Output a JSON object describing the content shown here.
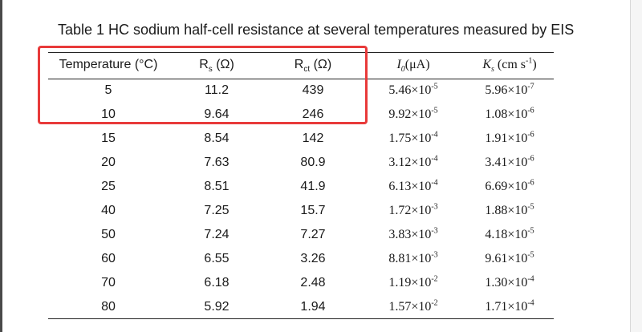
{
  "caption": "Table 1 HC sodium half-cell resistance at several temperatures measured by EIS",
  "header": {
    "temperature": "Temperature (°C)",
    "rs_main": "R",
    "rs_sub": "s",
    "rs_unit": " (Ω)",
    "rct_main": "R",
    "rct_sub": "ct",
    "rct_unit": " (Ω)",
    "i0_main": "I",
    "i0_sub": "0",
    "i0_unit": "(μA)",
    "ks_main": "K",
    "ks_sub": "s",
    "ks_unit": " (cm s",
    "ks_exp": "-1",
    "ks_close": ")"
  },
  "rows": [
    {
      "temp": "5",
      "rs": "11.2",
      "rct": "439",
      "i0": "5.46×10",
      "i0_exp": "-5",
      "ks": "5.96×10",
      "ks_exp": "-7"
    },
    {
      "temp": "10",
      "rs": "9.64",
      "rct": "246",
      "i0": "9.92×10",
      "i0_exp": "-5",
      "ks": "1.08×10",
      "ks_exp": "-6"
    },
    {
      "temp": "15",
      "rs": "8.54",
      "rct": "142",
      "i0": "1.75×10",
      "i0_exp": "-4",
      "ks": "1.91×10",
      "ks_exp": "-6"
    },
    {
      "temp": "20",
      "rs": "7.63",
      "rct": "80.9",
      "i0": "3.12×10",
      "i0_exp": "-4",
      "ks": "3.41×10",
      "ks_exp": "-6"
    },
    {
      "temp": "25",
      "rs": "8.51",
      "rct": "41.9",
      "i0": "6.13×10",
      "i0_exp": "-4",
      "ks": "6.69×10",
      "ks_exp": "-6"
    },
    {
      "temp": "40",
      "rs": "7.25",
      "rct": "15.7",
      "i0": "1.72×10",
      "i0_exp": "-3",
      "ks": "1.88×10",
      "ks_exp": "-5"
    },
    {
      "temp": "50",
      "rs": "7.24",
      "rct": "7.27",
      "i0": "3.83×10",
      "i0_exp": "-3",
      "ks": "4.18×10",
      "ks_exp": "-5"
    },
    {
      "temp": "60",
      "rs": "6.55",
      "rct": "3.26",
      "i0": "8.81×10",
      "i0_exp": "-3",
      "ks": "9.61×10",
      "ks_exp": "-5"
    },
    {
      "temp": "70",
      "rs": "6.18",
      "rct": "2.48",
      "i0": "1.19×10",
      "i0_exp": "-2",
      "ks": "1.30×10",
      "ks_exp": "-4"
    },
    {
      "temp": "80",
      "rs": "5.92",
      "rct": "1.94",
      "i0": "1.57×10",
      "i0_exp": "-2",
      "ks": "1.71×10",
      "ks_exp": "-4"
    }
  ],
  "highlight_color": "#e83a3a"
}
